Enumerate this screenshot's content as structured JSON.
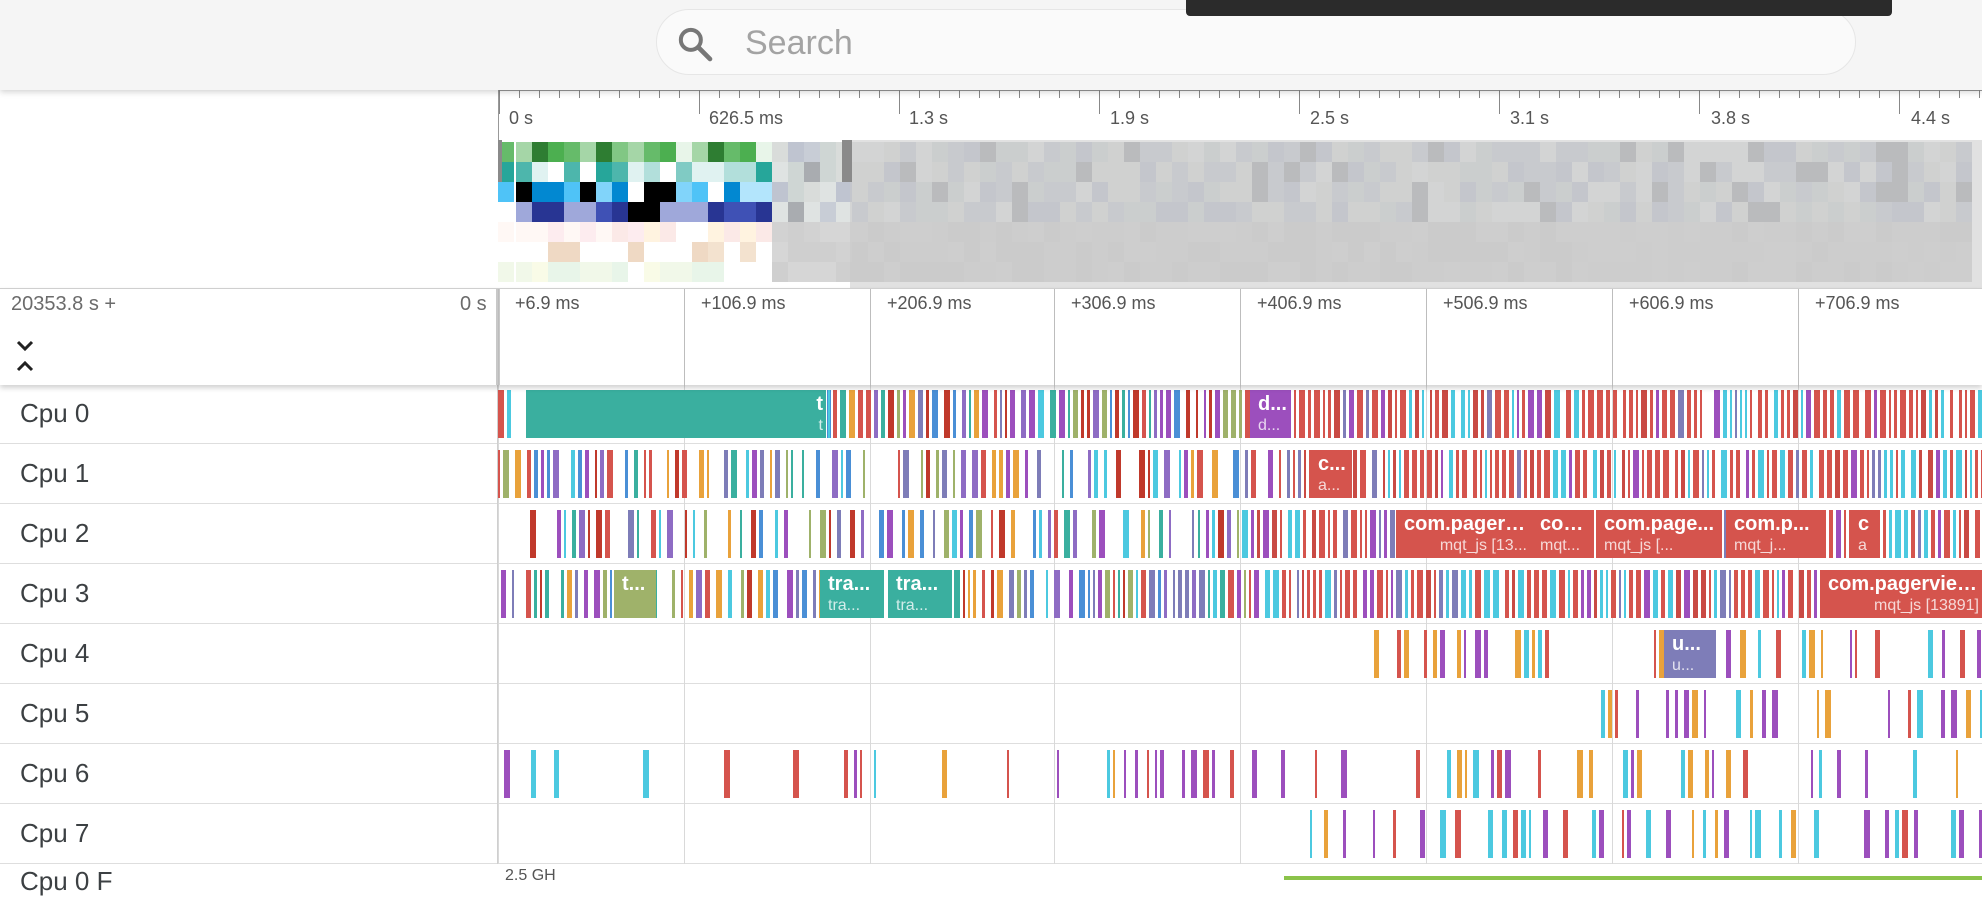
{
  "search": {
    "placeholder": "Search",
    "value": ""
  },
  "overview": {
    "labels": [
      "0 s",
      "626.5 ms",
      "1.3 s",
      "1.9 s",
      "2.5 s",
      "3.1 s",
      "3.8 s",
      "4.4 s"
    ]
  },
  "timeline": {
    "offset": "20353.8 s +",
    "zero": "0 s",
    "labels": [
      "+6.9 ms",
      "+106.9 ms",
      "+206.9 ms",
      "+306.9 ms",
      "+406.9 ms",
      "+506.9 ms",
      "+606.9 ms",
      "+706.9 ms"
    ],
    "collapse_icon": "collapse-expand-icon"
  },
  "colors": {
    "teal": "#3aaf9f",
    "red": "#d5544d",
    "purple": "#9c4fbd",
    "lavender": "#7e7db8",
    "cyan": "#4cc9e0",
    "blue": "#4a8fd6",
    "orange": "#e9a23b",
    "olive": "#9fb26a",
    "green": "#8bc34a"
  },
  "tracks": [
    {
      "name": "Cpu 0",
      "slices": [
        {
          "name": "t",
          "sub": "t",
          "right": true
        },
        {
          "name": "d...",
          "sub": "d..."
        }
      ]
    },
    {
      "name": "Cpu 1",
      "slices": [
        {
          "name": "c...",
          "sub": "a..."
        }
      ]
    },
    {
      "name": "Cpu 2",
      "slices": [
        {
          "name": "com.pagerv...",
          "sub": "mqt_js [13...",
          "right": true
        },
        {
          "name": "com...",
          "sub": "mqt..."
        },
        {
          "name": "com.page...",
          "sub": "mqt_js [..."
        },
        {
          "name": "com.p...",
          "sub": "mqt_j..."
        },
        {
          "name": "c",
          "sub": "a"
        }
      ]
    },
    {
      "name": "Cpu 3",
      "slices": [
        {
          "name": "t...",
          "sub": ""
        },
        {
          "name": "tra...",
          "sub": "tra..."
        },
        {
          "name": "tra...",
          "sub": "tra..."
        },
        {
          "name": "com.pagerviewe",
          "sub": "mqt_js [13891]",
          "right": true
        }
      ]
    },
    {
      "name": "Cpu 4",
      "slices": [
        {
          "name": "u...",
          "sub": "u..."
        }
      ]
    },
    {
      "name": "Cpu 5",
      "slices": []
    },
    {
      "name": "Cpu 6",
      "slices": []
    },
    {
      "name": "Cpu 7",
      "slices": []
    }
  ],
  "partial_track": {
    "name": "Cpu 0 F",
    "value": "2.5 GH"
  }
}
